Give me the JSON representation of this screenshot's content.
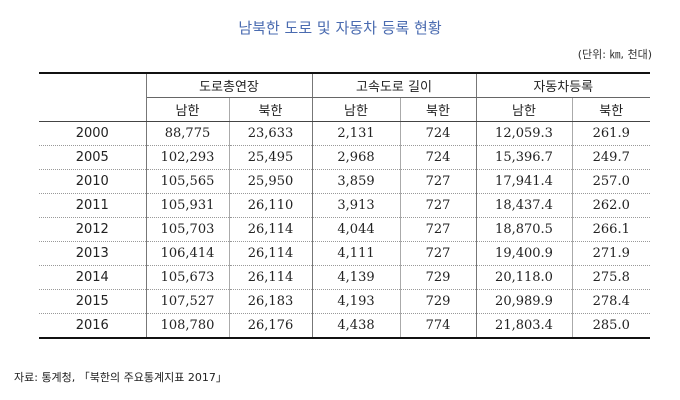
{
  "title": "남북한 도로 및 자동차 등록 현황",
  "unit": "(단위: ㎞, 천대)",
  "groups": [
    {
      "label": "도로총연장"
    },
    {
      "label": "고속도로 길이"
    },
    {
      "label": "자동차등록"
    }
  ],
  "subheaders": [
    "남한",
    "북한",
    "남한",
    "북한",
    "남한",
    "북한"
  ],
  "rows": [
    {
      "year": "2000",
      "cells": [
        "88,775",
        "23,633",
        "2,131",
        "724",
        "12,059.3",
        "261.9"
      ]
    },
    {
      "year": "2005",
      "cells": [
        "102,293",
        "25,495",
        "2,968",
        "724",
        "15,396.7",
        "249.7"
      ]
    },
    {
      "year": "2010",
      "cells": [
        "105,565",
        "25,950",
        "3,859",
        "727",
        "17,941.4",
        "257.0"
      ]
    },
    {
      "year": "2011",
      "cells": [
        "105,931",
        "26,110",
        "3,913",
        "727",
        "18,437.4",
        "262.0"
      ]
    },
    {
      "year": "2012",
      "cells": [
        "105,703",
        "26,114",
        "4,044",
        "727",
        "18,870.5",
        "266.1"
      ]
    },
    {
      "year": "2013",
      "cells": [
        "106,414",
        "26,114",
        "4,111",
        "727",
        "19,400.9",
        "271.9"
      ]
    },
    {
      "year": "2014",
      "cells": [
        "105,673",
        "26,114",
        "4,139",
        "729",
        "20,118.0",
        "275.8"
      ]
    },
    {
      "year": "2015",
      "cells": [
        "107,527",
        "26,183",
        "4,193",
        "729",
        "20,989.9",
        "278.4"
      ]
    },
    {
      "year": "2016",
      "cells": [
        "108,780",
        "26,176",
        "4,438",
        "774",
        "21,803.4",
        "285.0"
      ]
    }
  ],
  "source": "자료: 통계청, 「북한의 주요통계지표 2017」"
}
